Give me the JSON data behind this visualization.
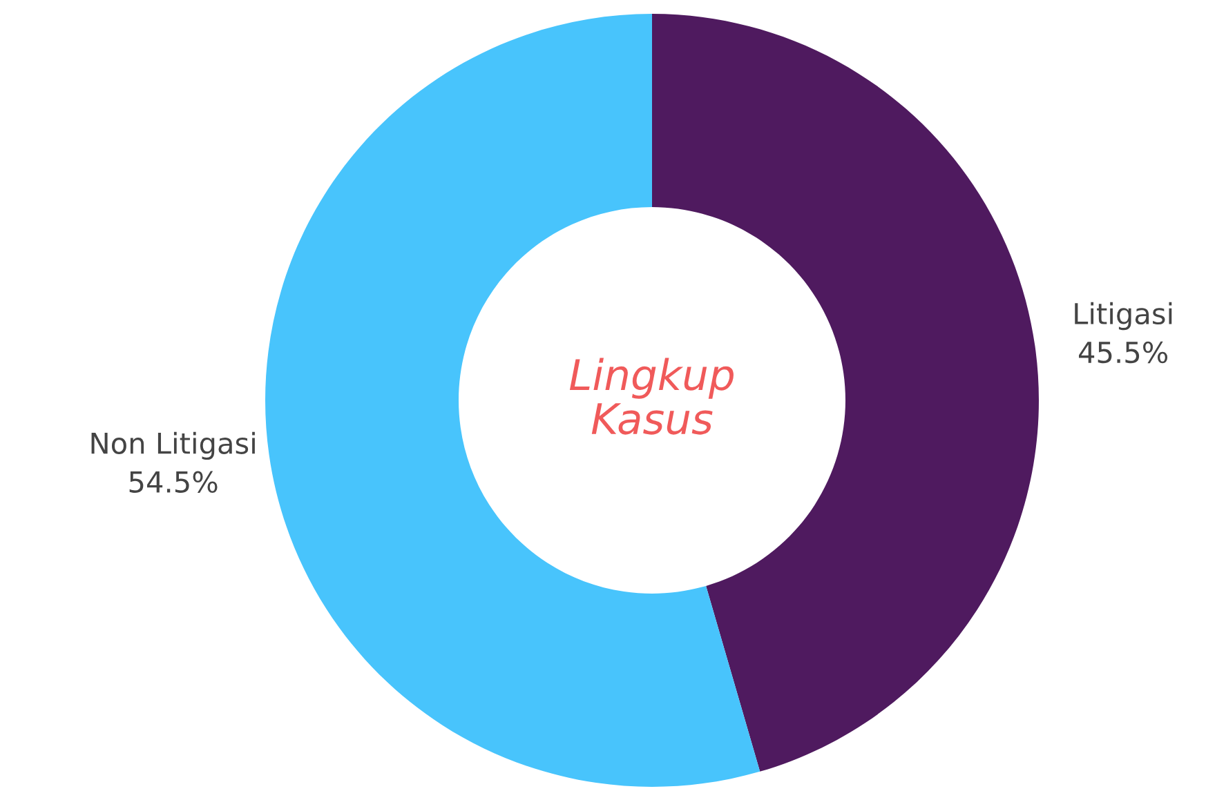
{
  "chart_data": {
    "type": "donut",
    "title": "Lingkup Kasus",
    "categories": [
      "Litigasi",
      "Non Litigasi"
    ],
    "values": [
      45.5,
      54.5
    ],
    "value_labels": [
      "45.5%",
      "54.5%"
    ],
    "colors": [
      "#4f1a5f",
      "#48c4fc"
    ],
    "legend": false
  }
}
